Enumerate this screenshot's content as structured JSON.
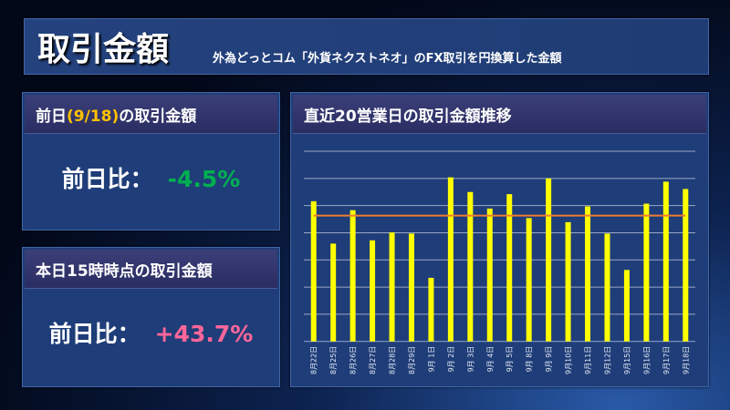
{
  "header": {
    "title": "取引金額",
    "subtitle": "外為どっとコム「外貨ネクストネオ」のFX取引を円換算した金額"
  },
  "prev_day": {
    "title_pre": "前日",
    "title_date": "(9/18)",
    "title_post": "の取引金額",
    "label": "前日比：",
    "value": "-4.5%",
    "value_color": "#00b050"
  },
  "today": {
    "title": "本日15時時点の取引金額",
    "label": "前日比：",
    "value": "+43.7%",
    "value_color": "#ff6699"
  },
  "chart_data": {
    "type": "bar",
    "title": "直近20営業日の取引金額推移",
    "categories": [
      "8月22日",
      "8月25日",
      "8月26日",
      "8月27日",
      "8月28日",
      "8月29日",
      "9月 1日",
      "9月 2日",
      "9月 3日",
      "9月 4日",
      "9月 5日",
      "9月 8日",
      "9月 9日",
      "9月10日",
      "9月11日",
      "9月12日",
      "9月15日",
      "9月16日",
      "9月17日",
      "9月18日"
    ],
    "values": [
      5.16,
      3.6,
      4.83,
      3.72,
      4.01,
      3.97,
      2.34,
      6.04,
      5.5,
      4.89,
      5.42,
      4.54,
      6.0,
      4.39,
      4.97,
      3.97,
      2.63,
      5.07,
      5.88,
      5.61
    ],
    "average_line": 4.63,
    "ylim": [
      0,
      7
    ],
    "grid": true,
    "bar_color": "#ffff00",
    "average_color": "#ed7d31"
  }
}
